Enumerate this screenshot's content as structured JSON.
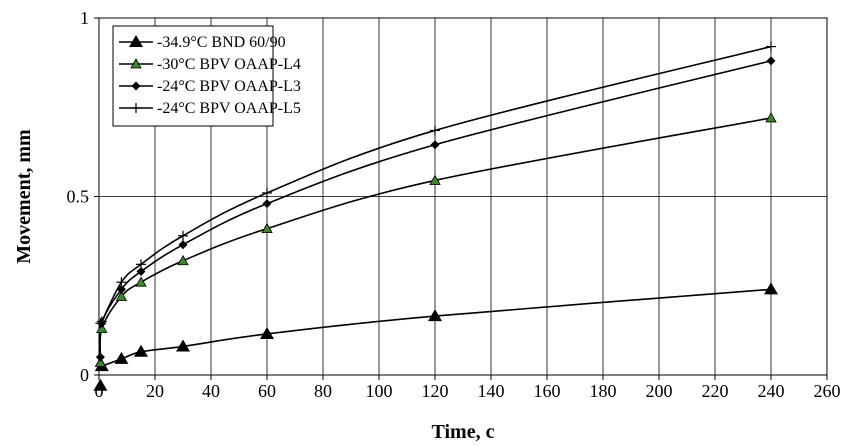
{
  "chart_data": {
    "type": "line",
    "xlabel": "Time, c",
    "ylabel": "Movement, mm",
    "xlim": [
      0,
      260
    ],
    "ylim": [
      0,
      1
    ],
    "x_ticks": [
      0,
      20,
      40,
      60,
      80,
      100,
      120,
      140,
      160,
      180,
      200,
      220,
      240,
      260
    ],
    "y_ticks": [
      {
        "value": 0,
        "label": "0"
      },
      {
        "value": 0.5,
        "label": "0.5"
      },
      {
        "value": 1,
        "label": "1"
      }
    ],
    "grid": {
      "vertical": true,
      "horizontal": true
    },
    "legend_position": "top-left",
    "series": [
      {
        "name": "-34.9°C BND 60/90",
        "marker": "triangle-large",
        "color": "#000000",
        "x": [
          0.5,
          1,
          8,
          15,
          30,
          60,
          120,
          240
        ],
        "y": [
          -0.03,
          0.025,
          0.045,
          0.065,
          0.08,
          0.115,
          0.165,
          0.24
        ]
      },
      {
        "name": "-30°C BPV OAAP-L4",
        "marker": "triangle-green",
        "color": "#3a8a2a",
        "x": [
          0.5,
          1,
          8,
          15,
          30,
          60,
          120,
          240
        ],
        "y": [
          0.035,
          0.13,
          0.22,
          0.26,
          0.32,
          0.41,
          0.545,
          0.72
        ]
      },
      {
        "name": "-24°C BPV OAAP-L3",
        "marker": "diamond",
        "color": "#000000",
        "x": [
          0.5,
          1,
          8,
          15,
          30,
          60,
          120,
          240
        ],
        "y": [
          0.05,
          0.145,
          0.24,
          0.29,
          0.365,
          0.48,
          0.645,
          0.88
        ]
      },
      {
        "name": "-24°C BPV OAAP-L5",
        "marker": "plus",
        "color": "#000000",
        "x": [
          0.5,
          1,
          8,
          15,
          30,
          60,
          120,
          240
        ],
        "y": [
          0.145,
          0.15,
          0.26,
          0.31,
          0.39,
          0.51,
          0.685,
          0.92
        ]
      }
    ]
  }
}
